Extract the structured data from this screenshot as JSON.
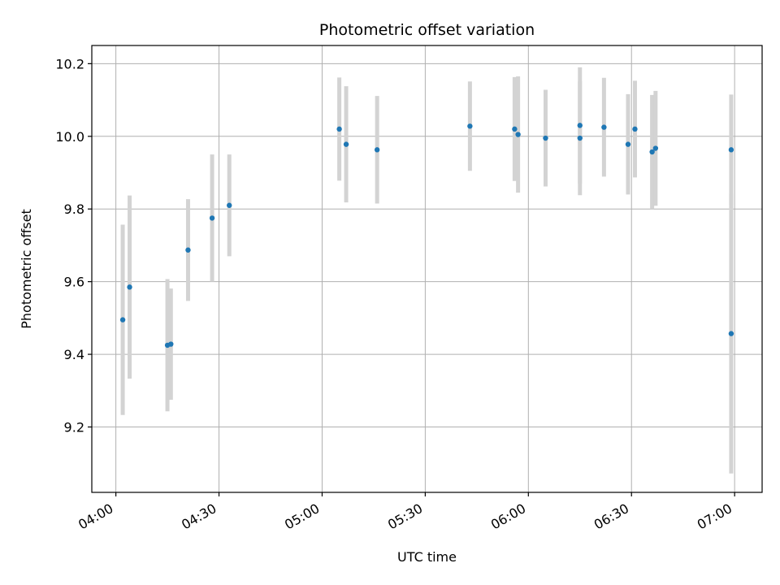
{
  "chart_data": {
    "type": "scatter",
    "title": "Photometric offset variation",
    "xlabel": "UTC time",
    "ylabel": "Photometric offset",
    "xlim": [
      "03:53",
      "07:08"
    ],
    "ylim": [
      9.02,
      10.25
    ],
    "xticks": [
      "04:00",
      "04:30",
      "05:00",
      "05:30",
      "06:00",
      "06:30",
      "07:00"
    ],
    "yticks": [
      9.2,
      9.4,
      9.6,
      9.8,
      10.0,
      10.2
    ],
    "ytick_labels": [
      "9.2",
      "9.4",
      "9.6",
      "9.8",
      "10.0",
      "10.2"
    ],
    "grid": true,
    "marker_color": "#1f77b4",
    "errorbar_color": "#d3d3d3",
    "series": [
      {
        "x": [
          "04:02",
          "04:04",
          "04:15",
          "04:16",
          "04:21",
          "04:28",
          "04:33",
          "05:05",
          "05:07",
          "05:16",
          "05:43",
          "05:56",
          "05:57",
          "06:05",
          "06:15",
          "06:15",
          "06:22",
          "06:29",
          "06:31",
          "06:36",
          "06:37",
          "06:59",
          "06:59"
        ],
        "y": [
          9.495,
          9.585,
          9.425,
          9.428,
          9.687,
          9.775,
          9.81,
          10.02,
          9.978,
          9.963,
          10.028,
          10.02,
          10.005,
          9.995,
          9.995,
          10.03,
          10.025,
          9.978,
          10.02,
          9.957,
          9.967,
          9.963,
          9.457
        ],
        "yerr": [
          0.262,
          0.252,
          0.182,
          0.153,
          0.14,
          0.175,
          0.14,
          0.142,
          0.16,
          0.148,
          0.123,
          0.143,
          0.16,
          0.133,
          0.157,
          0.16,
          0.136,
          0.138,
          0.133,
          0.157,
          0.158,
          0.152,
          0.385
        ]
      }
    ]
  }
}
